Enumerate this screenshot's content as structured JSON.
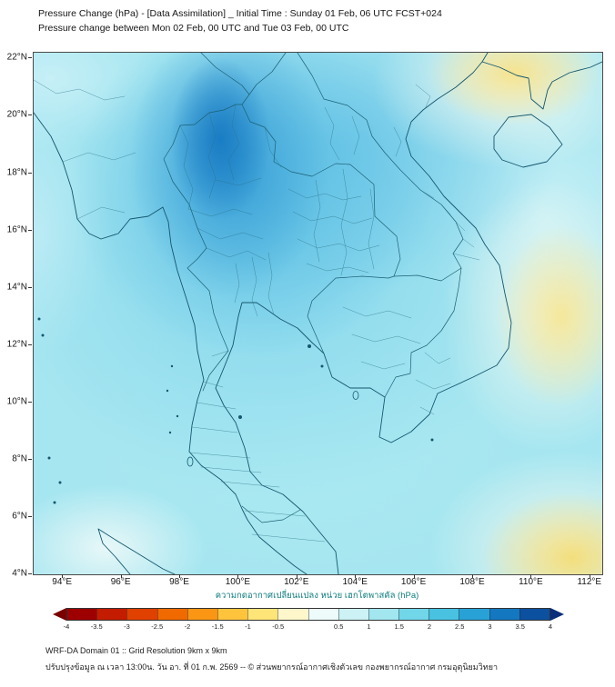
{
  "header": {
    "title_line1": "Pressure Change (hPa) - [Data Assimilation] _ Initial Time : Sunday 01 Feb, 06 UTC FCST+024",
    "title_line2": "Pressure change between Mon 02 Feb, 00 UTC and Tue 03 Feb, 00 UTC"
  },
  "map": {
    "y_axis_labels": [
      "22°N",
      "20°N",
      "18°N",
      "16°N",
      "14°N",
      "12°N",
      "10°N",
      "8°N",
      "6°N",
      "4°N"
    ],
    "x_axis_labels": [
      "94°E",
      "96°E",
      "98°E",
      "100°E",
      "102°E",
      "104°E",
      "106°E",
      "108°E",
      "110°E",
      "112°E"
    ],
    "shading_summary": [
      {
        "region": "Northern Thailand and Thai-Lao border area (97E-102E, 17N-21N)",
        "pressure_change_hpa": "+2 to +3",
        "color": "#2d94d2"
      },
      {
        "region": "Most of domain (Thailand, Indochina and adjacent seas)",
        "pressure_change_hpa": "+0.5 to +2",
        "color": "#a6e6f0"
      },
      {
        "region": "Northeast corner, southern China (~108E-111E, 20N-22N)",
        "pressure_change_hpa": "-0.5 to -1",
        "color": "#f5e28a"
      },
      {
        "region": "Sea east of southern Vietnam (~110E-112E, 11N-15N)",
        "pressure_change_hpa": "-0.5 to -1",
        "color": "#f6e694"
      },
      {
        "region": "Southeast corner of domain (~109E-112E, 4N-7N)",
        "pressure_change_hpa": "-0.5 to -1",
        "color": "#f3dd76"
      }
    ]
  },
  "colorbar": {
    "label": "ความกดอากาศเปลี่ยนแปลง หน่วย เฮกโตพาสคัล (hPa)",
    "min": -4,
    "max": 4,
    "tick_values": [
      -4,
      -3.5,
      -3,
      -2.5,
      -2,
      -1.5,
      -1,
      -0.5,
      0.5,
      1,
      1.5,
      2,
      2.5,
      3,
      3.5,
      4
    ],
    "tick_labels": [
      "-4",
      "-3.5",
      "-3",
      "-2.5",
      "-2",
      "-1.5",
      "-1",
      "-0.5",
      "0.5",
      "1",
      "1.5",
      "2",
      "2.5",
      "3",
      "3.5",
      "4"
    ],
    "segment_colors": [
      "#9e0000",
      "#c41c00",
      "#e04000",
      "#f06a00",
      "#fa9614",
      "#ffc43c",
      "#ffe478",
      "#fff7cc",
      "#edfbfb",
      "#ccf2f6",
      "#a2e6ef",
      "#72d6e9",
      "#48c2e0",
      "#28a2d6",
      "#1478c0",
      "#0c50a0"
    ],
    "arrow_left_color": "#7a0000",
    "arrow_right_color": "#0a2e7a"
  },
  "footer": {
    "line1": "WRF-DA Domain 01 :: Grid Resolution 9km x 9km",
    "line2": "ปรับปรุงข้อมูล ณ เวลา 13:00น. วัน อา. ที่ 01 ก.พ. 2569 -- © ส่วนพยากรณ์อากาศเชิงตัวเลข กองพยากรณ์อากาศ กรมอุตุนิยมวิทยา"
  }
}
